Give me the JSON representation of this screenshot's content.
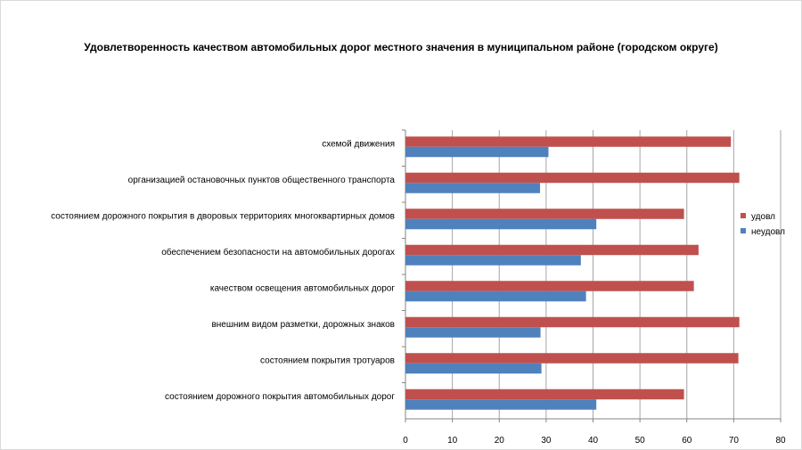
{
  "chart_data": {
    "type": "bar",
    "orientation": "horizontal",
    "title": "Удовлетворенность качеством автомобильных дорог местного значения в муниципальном районе (городском округе)",
    "categories": [
      "состоянием дорожного покрытия автомобильных дорог",
      "состоянием покрытия тротуаров",
      "внешним видом разметки, дорожных знаков",
      "качеством освещения автомобильных дорог",
      "обеспечением безопасности на автомобильных дорогах",
      "состоянием дорожного покрытия в дворовых территориях многоквартирных домов",
      "организацией остановочных пунктов общественного транспорта",
      "схемой движения"
    ],
    "series": [
      {
        "name": "удовл",
        "color": "#c0504d",
        "values": [
          59.4,
          71.0,
          71.2,
          61.5,
          62.5,
          59.4,
          71.2,
          69.4
        ]
      },
      {
        "name": "неудовл",
        "color": "#4f81bd",
        "values": [
          40.7,
          29.0,
          28.8,
          38.5,
          37.4,
          40.7,
          28.7,
          30.5
        ]
      }
    ],
    "xlim": [
      0,
      80
    ],
    "xticks": [
      "0",
      "10",
      "20",
      "30",
      "40",
      "50",
      "60",
      "70",
      "80"
    ],
    "grid": true,
    "legend": "right"
  }
}
